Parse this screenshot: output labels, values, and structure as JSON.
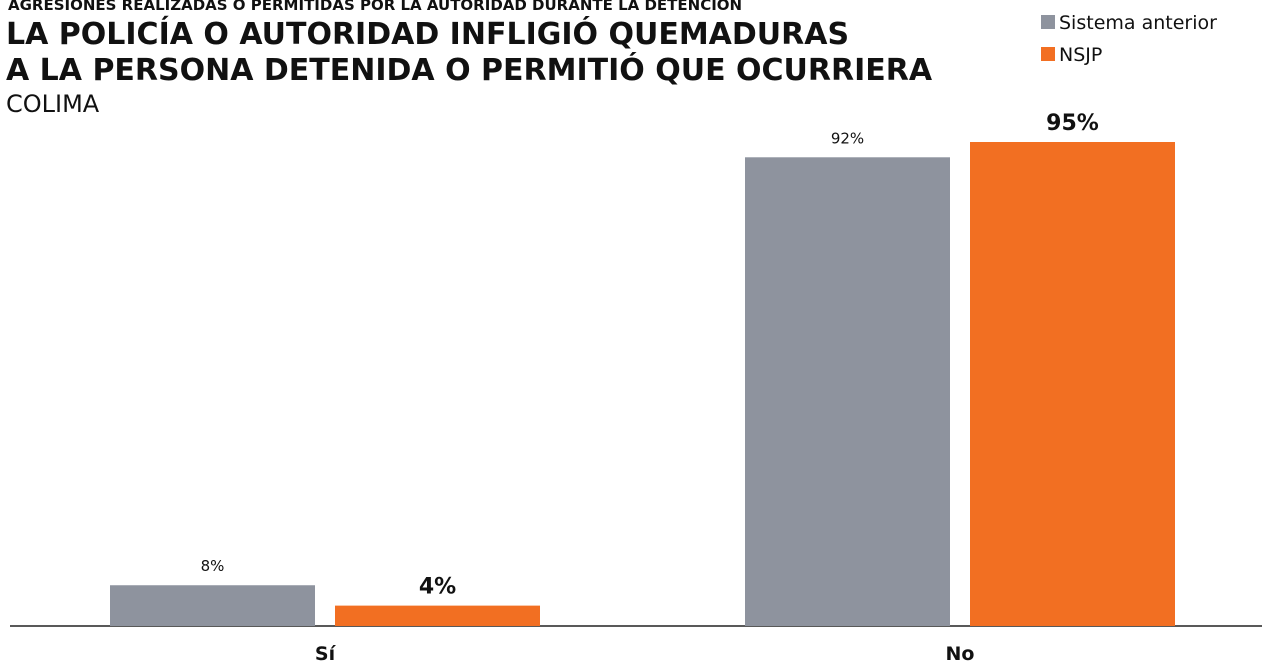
{
  "chart_data": {
    "type": "bar",
    "supertitle": "AGRESIONES REALIZADAS O PERMITIDAS POR LA AUTORIDAD DURANTE LA DETENCIÓN",
    "title": [
      "LA POLICÍA O AUTORIDAD INFLIGIÓ QUEMADURAS",
      "A LA PERSONA DETENIDA O PERMITIÓ QUE OCURRIERA"
    ],
    "subtitle": "COLIMA",
    "categories": [
      "Sí",
      "No"
    ],
    "series": [
      {
        "name": "Sistema anterior",
        "color": "#8e939e",
        "values": [
          8,
          92
        ],
        "value_labels": [
          "8%",
          "92%"
        ]
      },
      {
        "name": "NSJP",
        "color": "#f26f22",
        "values": [
          4,
          95
        ],
        "value_labels": [
          "4%",
          "95%"
        ]
      }
    ],
    "legend": "top-right"
  }
}
